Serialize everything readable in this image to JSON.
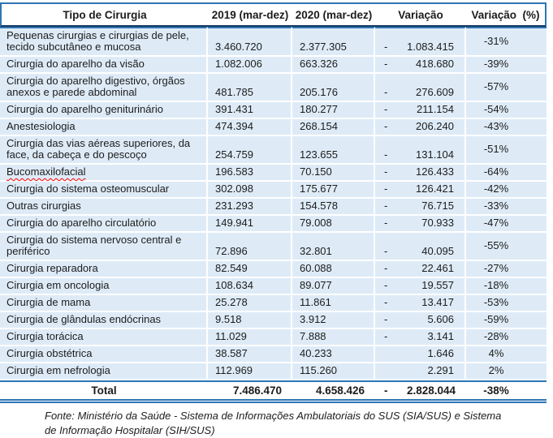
{
  "table": {
    "headers": {
      "tipo": "Tipo de Cirurgia",
      "y2019": "2019 (mar-dez)",
      "y2020": "2020 (mar-dez)",
      "variacao": "Variação",
      "variacao_pct": "Variação  (%)"
    },
    "rows": [
      {
        "name": "Pequenas cirurgias e cirurgias de pele, tecido subcutâneo e mucosa",
        "y2019": "3.460.720",
        "y2020": "2.377.305",
        "sign": "-",
        "variacao": "1.083.415",
        "pct": "-31%",
        "misspelled": false
      },
      {
        "name": "Cirurgia do aparelho da visão",
        "y2019": "1.082.006",
        "y2020": "663.326",
        "sign": "-",
        "variacao": "418.680",
        "pct": "-39%",
        "misspelled": false
      },
      {
        "name": "Cirurgia do aparelho digestivo, órgãos anexos e parede abdominal",
        "y2019": "481.785",
        "y2020": "205.176",
        "sign": "-",
        "variacao": "276.609",
        "pct": "-57%",
        "misspelled": false
      },
      {
        "name": "Cirurgia do aparelho geniturinário",
        "y2019": "391.431",
        "y2020": "180.277",
        "sign": "-",
        "variacao": "211.154",
        "pct": "-54%",
        "misspelled": false
      },
      {
        "name": "Anestesiologia",
        "y2019": "474.394",
        "y2020": "268.154",
        "sign": "-",
        "variacao": "206.240",
        "pct": "-43%",
        "misspelled": false
      },
      {
        "name": "Cirurgia das vias aéreas superiores, da face, da cabeça e do pescoço",
        "y2019": "254.759",
        "y2020": "123.655",
        "sign": "-",
        "variacao": "131.104",
        "pct": "-51%",
        "misspelled": false
      },
      {
        "name": "Bucomaxilofacial",
        "y2019": "196.583",
        "y2020": "70.150",
        "sign": "-",
        "variacao": "126.433",
        "pct": "-64%",
        "misspelled": true
      },
      {
        "name": "Cirurgia do sistema osteomuscular",
        "y2019": "302.098",
        "y2020": "175.677",
        "sign": "-",
        "variacao": "126.421",
        "pct": "-42%",
        "misspelled": false
      },
      {
        "name": "Outras cirurgias",
        "y2019": "231.293",
        "y2020": "154.578",
        "sign": "-",
        "variacao": "76.715",
        "pct": "-33%",
        "misspelled": false
      },
      {
        "name": "Cirurgia do aparelho circulatório",
        "y2019": "149.941",
        "y2020": "79.008",
        "sign": "-",
        "variacao": "70.933",
        "pct": "-47%",
        "misspelled": false
      },
      {
        "name": "Cirurgia do sistema nervoso central e periférico",
        "y2019": "72.896",
        "y2020": "32.801",
        "sign": "-",
        "variacao": "40.095",
        "pct": "-55%",
        "misspelled": false
      },
      {
        "name": "Cirurgia reparadora",
        "y2019": "82.549",
        "y2020": "60.088",
        "sign": "-",
        "variacao": "22.461",
        "pct": "-27%",
        "misspelled": false
      },
      {
        "name": "Cirurgia em oncologia",
        "y2019": "108.634",
        "y2020": "89.077",
        "sign": "-",
        "variacao": "19.557",
        "pct": "-18%",
        "misspelled": false
      },
      {
        "name": "Cirurgia de mama",
        "y2019": "25.278",
        "y2020": "11.861",
        "sign": "-",
        "variacao": "13.417",
        "pct": "-53%",
        "misspelled": false
      },
      {
        "name": "Cirurgia de glândulas endócrinas",
        "y2019": "9.518",
        "y2020": "3.912",
        "sign": "-",
        "variacao": "5.606",
        "pct": "-59%",
        "misspelled": false
      },
      {
        "name": "Cirurgia torácica",
        "y2019": "11.029",
        "y2020": "7.888",
        "sign": "-",
        "variacao": "3.141",
        "pct": "-28%",
        "misspelled": false
      },
      {
        "name": "Cirurgia obstétrica",
        "y2019": "38.587",
        "y2020": "40.233",
        "sign": "",
        "variacao": "1.646",
        "pct": "4%",
        "misspelled": false
      },
      {
        "name": "Cirurgia em nefrologia",
        "y2019": "112.969",
        "y2020": "115.260",
        "sign": "",
        "variacao": "2.291",
        "pct": "2%",
        "misspelled": false
      }
    ],
    "total": {
      "label": "Total",
      "y2019": "7.486.470",
      "y2020": "4.658.426",
      "sign": "-",
      "variacao": "2.828.044",
      "pct": "-38%"
    }
  },
  "footer": {
    "line1": "Fonte: Ministério da Saúde - Sistema de Informações Ambulatoriais do SUS (SIA/SUS) e Sistema",
    "line2": "de Informação Hospitalar (SIH/SUS)"
  },
  "colors": {
    "border_blue": "#2E75B6",
    "border_dark": "#17365D",
    "row_background": "#DEEBF7",
    "squiggle_red": "#FF0000",
    "text": "#1c1c1c"
  }
}
